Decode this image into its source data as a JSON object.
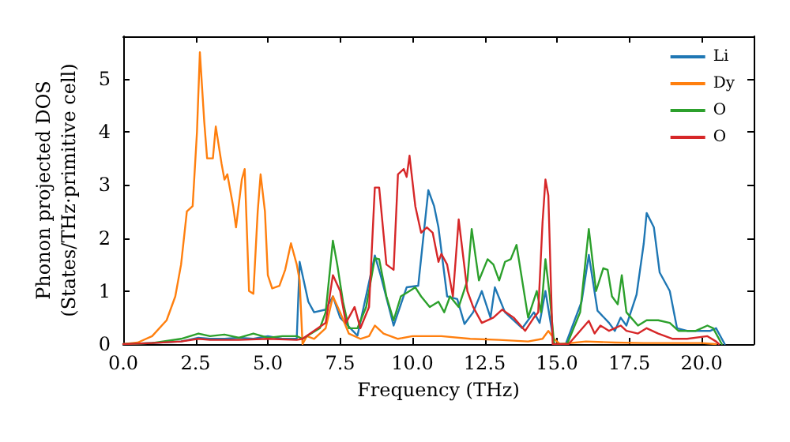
{
  "chart_data": {
    "type": "line",
    "xlabel": "Frequency (THz)",
    "ylabel": "Phonon projected DOS\n(States/THz·primitive cell)",
    "xlim": [
      0,
      21.8
    ],
    "ylim": [
      0,
      5.8
    ],
    "xticks": [
      {
        "value": 0,
        "label": "0.0"
      },
      {
        "value": 2.5,
        "label": "2.5"
      },
      {
        "value": 5,
        "label": "5.0"
      },
      {
        "value": 7.5,
        "label": "7.5"
      },
      {
        "value": 10,
        "label": "10.0"
      },
      {
        "value": 12.5,
        "label": "12.5"
      },
      {
        "value": 15,
        "label": "15.0"
      },
      {
        "value": 17.5,
        "label": "17.5"
      },
      {
        "value": 20,
        "label": "20.0"
      }
    ],
    "yticks": [
      0,
      1,
      2,
      3,
      4,
      5
    ],
    "grid": false,
    "legend": "top right",
    "marker": "none",
    "line_style": "solid",
    "series": [
      {
        "name": "Li",
        "color": "#1f77b4",
        "x": [
          0,
          1,
          2,
          2.6,
          3,
          3.5,
          4,
          4.5,
          5,
          5.5,
          6,
          6.1,
          6.4,
          6.6,
          7.0,
          7.25,
          7.5,
          8.1,
          8.7,
          8.9,
          9.35,
          9.8,
          10.2,
          10.55,
          10.75,
          10.9,
          11.2,
          11.55,
          11.8,
          12.1,
          12.4,
          12.7,
          12.85,
          13.2,
          13.8,
          14.2,
          14.4,
          14.6,
          14.9,
          15.3,
          15.85,
          16.1,
          16.4,
          16.8,
          17.0,
          17.2,
          17.4,
          17.75,
          18.0,
          18.1,
          18.35,
          18.55,
          18.9,
          19.15,
          19.5,
          20.3,
          20.5,
          20.8
        ],
        "values": [
          0,
          0.02,
          0.05,
          0.12,
          0.1,
          0.1,
          0.12,
          0.1,
          0.15,
          0.1,
          0.1,
          1.55,
          0.8,
          0.6,
          0.65,
          0.9,
          0.5,
          0.16,
          1.67,
          1.3,
          0.35,
          1.07,
          1.1,
          2.9,
          2.6,
          2.2,
          0.9,
          0.85,
          0.38,
          0.6,
          1.0,
          0.5,
          1.07,
          0.6,
          0.3,
          0.6,
          0.4,
          1.0,
          0,
          0,
          0.8,
          1.68,
          0.63,
          0.4,
          0.25,
          0.5,
          0.35,
          0.93,
          1.9,
          2.47,
          2.2,
          1.35,
          1.0,
          0.3,
          0.25,
          0.25,
          0.3,
          0
        ]
      },
      {
        "name": "Dy",
        "color": "#ff7f0e",
        "x": [
          0,
          0.5,
          1,
          1.5,
          1.8,
          2.0,
          2.2,
          2.4,
          2.55,
          2.65,
          2.8,
          2.9,
          3.1,
          3.2,
          3.4,
          3.5,
          3.6,
          3.8,
          3.9,
          4.1,
          4.2,
          4.35,
          4.5,
          4.65,
          4.75,
          4.9,
          5.0,
          5.15,
          5.4,
          5.6,
          5.8,
          6.0,
          6.1,
          6.2,
          6.35,
          6.6,
          7.0,
          7.25,
          7.5,
          7.8,
          8.2,
          8.5,
          8.7,
          9.0,
          9.5,
          10,
          11,
          12,
          13,
          14,
          14.5,
          14.7,
          14.9,
          15.1,
          16,
          17,
          18,
          19,
          20,
          20.5
        ],
        "values": [
          0,
          0.03,
          0.15,
          0.45,
          0.9,
          1.5,
          2.5,
          2.6,
          4.0,
          5.5,
          4.2,
          3.5,
          3.5,
          4.1,
          3.4,
          3.1,
          3.2,
          2.6,
          2.2,
          3.1,
          3.3,
          1.0,
          0.95,
          2.5,
          3.2,
          2.5,
          1.3,
          1.05,
          1.1,
          1.4,
          1.9,
          1.5,
          1.2,
          0,
          0.15,
          0.1,
          0.3,
          0.9,
          0.6,
          0.2,
          0.1,
          0.15,
          0.35,
          0.2,
          0.1,
          0.15,
          0.15,
          0.1,
          0.08,
          0.05,
          0.1,
          0.25,
          0.1,
          0,
          0.05,
          0.03,
          0.02,
          0.02,
          0.02,
          0
        ]
      },
      {
        "name": "O",
        "color": "#2ca02c",
        "x": [
          0,
          1,
          2,
          2.6,
          3,
          3.5,
          4,
          4.5,
          5,
          5.5,
          6,
          6.2,
          6.8,
          7.0,
          7.25,
          7.4,
          7.6,
          7.8,
          8.1,
          8.4,
          8.7,
          8.85,
          9.1,
          9.35,
          9.6,
          9.9,
          10.1,
          10.3,
          10.6,
          10.9,
          11.1,
          11.3,
          11.6,
          11.9,
          12.05,
          12.3,
          12.6,
          12.8,
          13.0,
          13.2,
          13.4,
          13.6,
          14.0,
          14.3,
          14.45,
          14.6,
          14.75,
          14.9,
          15.35,
          15.8,
          16.1,
          16.35,
          16.6,
          16.75,
          16.9,
          17.1,
          17.24,
          17.4,
          17.8,
          18.1,
          18.5,
          18.9,
          19.2,
          19.8,
          20.2,
          20.4,
          20.7
        ],
        "values": [
          0,
          0.02,
          0.1,
          0.2,
          0.15,
          0.18,
          0.12,
          0.2,
          0.12,
          0.15,
          0.15,
          0.1,
          0.3,
          0.6,
          1.95,
          1.5,
          0.8,
          0.3,
          0.3,
          0.7,
          1.62,
          1.6,
          0.9,
          0.45,
          0.9,
          1.0,
          1.07,
          0.9,
          0.7,
          0.8,
          0.6,
          0.9,
          0.7,
          1.2,
          2.17,
          1.2,
          1.6,
          1.5,
          1.2,
          1.55,
          1.6,
          1.87,
          0.5,
          1.0,
          0.6,
          1.6,
          0.9,
          0,
          0,
          0.6,
          2.17,
          1.0,
          1.43,
          1.4,
          0.9,
          0.75,
          1.3,
          0.6,
          0.35,
          0.45,
          0.45,
          0.4,
          0.25,
          0.25,
          0.35,
          0.3,
          0
        ]
      },
      {
        "name": "O",
        "color": "#d62728",
        "x": [
          0,
          1,
          2,
          2.6,
          3,
          4,
          5,
          6,
          6.2,
          7.0,
          7.25,
          7.5,
          7.7,
          8.0,
          8.2,
          8.5,
          8.7,
          8.85,
          9.1,
          9.35,
          9.5,
          9.7,
          9.8,
          9.9,
          10.1,
          10.3,
          10.5,
          10.7,
          10.9,
          11.0,
          11.2,
          11.4,
          11.6,
          11.9,
          12.1,
          12.4,
          12.8,
          13.1,
          13.5,
          13.9,
          14.2,
          14.35,
          14.5,
          14.6,
          14.7,
          14.85,
          15.4,
          16.1,
          16.3,
          16.5,
          16.8,
          17.2,
          17.4,
          17.8,
          18.1,
          18.5,
          19,
          19.5,
          20.2,
          20.5,
          20.6
        ],
        "values": [
          0,
          0.02,
          0.05,
          0.1,
          0.08,
          0.08,
          0.1,
          0.08,
          0.1,
          0.4,
          1.3,
          1.0,
          0.4,
          0.7,
          0.3,
          0.7,
          2.95,
          2.95,
          1.5,
          1.4,
          3.2,
          3.3,
          3.15,
          3.55,
          2.6,
          2.1,
          2.2,
          2.1,
          1.55,
          1.7,
          1.5,
          0.9,
          2.35,
          1.0,
          0.7,
          0.4,
          0.5,
          0.65,
          0.5,
          0.25,
          0.5,
          0.6,
          2.3,
          3.1,
          2.8,
          0,
          0,
          0.44,
          0.2,
          0.35,
          0.25,
          0.35,
          0.25,
          0.2,
          0.3,
          0.2,
          0.1,
          0.1,
          0.15,
          0.05,
          0
        ]
      }
    ]
  }
}
